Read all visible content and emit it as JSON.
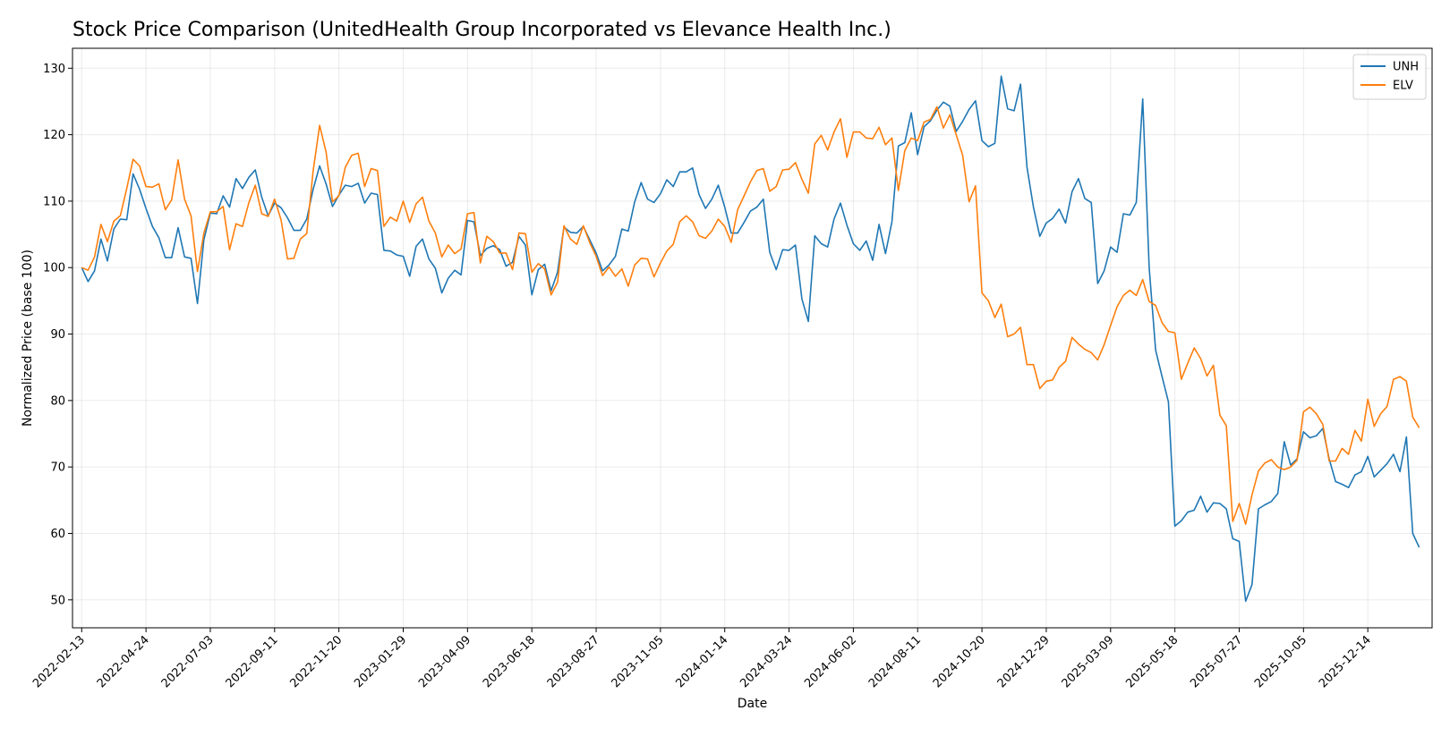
{
  "chart_data": {
    "type": "line",
    "title": "Stock Price Comparison (UnitedHealth Group Incorporated vs Elevance Health Inc.)",
    "xlabel": "Date",
    "ylabel": "Normalized Price (base 100)",
    "ylim": [
      45.8,
      133
    ],
    "yticks": [
      50,
      60,
      70,
      80,
      90,
      100,
      110,
      120,
      130
    ],
    "xlim_days": [
      -10,
      1470
    ],
    "xtick_labels": [
      "2022-02-13",
      "2022-04-24",
      "2022-07-03",
      "2022-09-11",
      "2022-11-20",
      "2023-01-29",
      "2023-04-09",
      "2023-06-18",
      "2023-08-27",
      "2023-11-05",
      "2024-01-14",
      "2024-03-24",
      "2024-06-02",
      "2024-08-11",
      "2024-10-20",
      "2024-12-29",
      "2025-03-09",
      "2025-05-18",
      "2025-07-27",
      "2025-10-05",
      "2025-12-14"
    ],
    "xtick_days": [
      0,
      70,
      140,
      210,
      280,
      350,
      420,
      490,
      560,
      630,
      700,
      770,
      840,
      910,
      980,
      1050,
      1120,
      1190,
      1260,
      1330,
      1400
    ],
    "grid": true,
    "legend_position": "top-right",
    "series": [
      {
        "name": "UNH",
        "color": "#1f77b4",
        "x": [
          0,
          7,
          14,
          21,
          28,
          35,
          42,
          49,
          56,
          63,
          70,
          77,
          84,
          91,
          98,
          105,
          112,
          119,
          126,
          133,
          140,
          147,
          154,
          161,
          168,
          175,
          182,
          189,
          196,
          203,
          210,
          217,
          224,
          231,
          238,
          245,
          252,
          259,
          266,
          273,
          280,
          287,
          294,
          301,
          308,
          315,
          322,
          329,
          336,
          343,
          350,
          357,
          364,
          371,
          378,
          385,
          392,
          399,
          406,
          413,
          420,
          427,
          434,
          441,
          448,
          455,
          462,
          469,
          476,
          483,
          490,
          497,
          504,
          511,
          518,
          525,
          532,
          539,
          546,
          553,
          560,
          567,
          574,
          581,
          588,
          595,
          602,
          609,
          616,
          623,
          630,
          637,
          644,
          651,
          658,
          665,
          672,
          679,
          686,
          693,
          700,
          707,
          714,
          721,
          728,
          735,
          742,
          749,
          756,
          763,
          770,
          777,
          784,
          791,
          798,
          805,
          812,
          819,
          826,
          833,
          840,
          847,
          854,
          861,
          868,
          875,
          882,
          889,
          896,
          903,
          910,
          917,
          924,
          931,
          938,
          945,
          952,
          959,
          966,
          973,
          980,
          987,
          994,
          1001,
          1008,
          1015,
          1022,
          1029,
          1036,
          1043,
          1050,
          1057,
          1064,
          1071,
          1078,
          1085,
          1092,
          1099,
          1106,
          1113,
          1120,
          1127,
          1134,
          1141,
          1148,
          1155,
          1162,
          1169,
          1176,
          1183,
          1190,
          1197,
          1204,
          1211,
          1218,
          1225,
          1232,
          1239,
          1246,
          1253,
          1260,
          1267,
          1274,
          1281,
          1288,
          1295,
          1302,
          1309,
          1316,
          1323,
          1330,
          1337,
          1344,
          1351,
          1358,
          1365,
          1372,
          1379,
          1386,
          1393,
          1400,
          1407,
          1414,
          1421,
          1428,
          1435,
          1442,
          1449,
          1456
        ],
        "values": [
          100.0,
          97.9,
          99.5,
          104.3,
          101.0,
          105.8,
          107.3,
          107.2,
          114.1,
          111.8,
          108.9,
          106.2,
          104.5,
          101.5,
          101.5,
          106.0,
          101.6,
          101.4,
          94.6,
          104.2,
          108.2,
          108.1,
          110.8,
          109.1,
          113.4,
          111.9,
          113.6,
          114.7,
          110.6,
          107.8,
          109.7,
          109.0,
          107.5,
          105.6,
          105.6,
          107.3,
          111.8,
          115.3,
          112.6,
          109.2,
          110.9,
          112.4,
          112.2,
          112.7,
          109.7,
          111.2,
          111.0,
          102.6,
          102.5,
          101.9,
          101.7,
          98.7,
          103.2,
          104.3,
          101.3,
          99.9,
          96.2,
          98.4,
          99.6,
          98.9,
          107.1,
          106.9,
          101.8,
          102.9,
          103.3,
          102.7,
          100.2,
          100.8,
          104.7,
          103.4,
          95.9,
          99.7,
          100.5,
          96.5,
          99.3,
          106.1,
          105.3,
          105.2,
          106.2,
          104.2,
          102.2,
          99.5,
          100.4,
          101.7,
          105.8,
          105.5,
          109.9,
          112.8,
          110.3,
          109.8,
          111.1,
          113.2,
          112.2,
          114.4,
          114.4,
          115.0,
          111.0,
          108.9,
          110.3,
          112.4,
          109.1,
          105.2,
          105.2,
          106.8,
          108.5,
          109.1,
          110.3,
          102.3,
          99.7,
          102.7,
          102.6,
          103.4,
          95.3,
          91.9,
          104.8,
          103.6,
          103.1,
          107.3,
          109.7,
          106.4,
          103.6,
          102.6,
          104.0,
          101.1,
          106.5,
          102.1,
          106.9,
          118.3,
          118.8,
          123.3,
          117.0,
          121.2,
          122.1,
          123.7,
          124.9,
          124.3,
          120.5,
          122.0,
          123.8,
          125.1,
          119.1,
          118.2,
          118.7,
          128.8,
          123.9,
          123.6,
          127.6,
          115.1,
          109.1,
          104.7,
          106.7,
          107.4,
          108.8,
          106.7,
          111.4,
          113.4,
          110.4,
          109.8,
          97.6,
          99.5,
          103.1,
          102.3,
          108.1,
          107.9,
          109.8,
          125.4,
          100.0,
          87.6,
          83.6,
          79.8,
          61.1,
          61.9,
          63.2,
          63.5,
          65.6,
          63.2,
          64.6,
          64.5,
          63.7,
          59.2,
          58.8,
          49.8,
          52.3,
          63.7,
          64.3,
          64.8,
          66.0,
          73.8,
          70.3,
          71.2,
          75.3,
          74.4,
          74.7,
          75.8,
          71.2,
          67.8,
          67.4,
          66.9,
          68.8,
          69.3,
          71.6,
          68.5,
          69.5,
          70.5,
          71.9,
          69.3,
          74.5,
          60.0,
          57.9
        ]
      },
      {
        "name": "ELV",
        "color": "#ff7f0e",
        "x": [
          0,
          7,
          14,
          21,
          28,
          35,
          42,
          49,
          56,
          63,
          70,
          77,
          84,
          91,
          98,
          105,
          112,
          119,
          126,
          133,
          140,
          147,
          154,
          161,
          168,
          175,
          182,
          189,
          196,
          203,
          210,
          217,
          224,
          231,
          238,
          245,
          252,
          259,
          266,
          273,
          280,
          287,
          294,
          301,
          308,
          315,
          322,
          329,
          336,
          343,
          350,
          357,
          364,
          371,
          378,
          385,
          392,
          399,
          406,
          413,
          420,
          427,
          434,
          441,
          448,
          455,
          462,
          469,
          476,
          483,
          490,
          497,
          504,
          511,
          518,
          525,
          532,
          539,
          546,
          553,
          560,
          567,
          574,
          581,
          588,
          595,
          602,
          609,
          616,
          623,
          630,
          637,
          644,
          651,
          658,
          665,
          672,
          679,
          686,
          693,
          700,
          707,
          714,
          721,
          728,
          735,
          742,
          749,
          756,
          763,
          770,
          777,
          784,
          791,
          798,
          805,
          812,
          819,
          826,
          833,
          840,
          847,
          854,
          861,
          868,
          875,
          882,
          889,
          896,
          903,
          910,
          917,
          924,
          931,
          938,
          945,
          952,
          959,
          966,
          973,
          980,
          987,
          994,
          1001,
          1008,
          1015,
          1022,
          1029,
          1036,
          1043,
          1050,
          1057,
          1064,
          1071,
          1078,
          1085,
          1092,
          1099,
          1106,
          1113,
          1120,
          1127,
          1134,
          1141,
          1148,
          1155,
          1162,
          1169,
          1176,
          1183,
          1190,
          1197,
          1204,
          1211,
          1218,
          1225,
          1232,
          1239,
          1246,
          1253,
          1260,
          1267,
          1274,
          1281,
          1288,
          1295,
          1302,
          1309,
          1316,
          1323,
          1330,
          1337,
          1344,
          1351,
          1358,
          1365,
          1372,
          1379,
          1386,
          1393,
          1400,
          1407,
          1414,
          1421,
          1428,
          1435,
          1442,
          1449,
          1456
        ],
        "values": [
          100.0,
          99.6,
          101.6,
          106.5,
          103.9,
          107.0,
          107.8,
          111.9,
          116.3,
          115.3,
          112.2,
          112.1,
          112.6,
          108.7,
          110.2,
          116.2,
          110.3,
          107.8,
          99.4,
          105.2,
          108.4,
          108.4,
          109.2,
          102.7,
          106.6,
          106.2,
          109.8,
          112.4,
          108.1,
          107.7,
          110.3,
          107.2,
          101.3,
          101.4,
          104.3,
          105.1,
          114.6,
          121.4,
          117.4,
          109.9,
          110.8,
          115.1,
          116.9,
          117.2,
          112.2,
          114.9,
          114.6,
          106.2,
          107.6,
          107.0,
          110.0,
          106.8,
          109.6,
          110.6,
          107.0,
          105.2,
          101.6,
          103.4,
          102.1,
          102.8,
          108.1,
          108.3,
          100.7,
          104.7,
          103.9,
          102.2,
          102.2,
          99.7,
          105.2,
          105.1,
          99.3,
          100.6,
          99.8,
          95.9,
          97.8,
          106.3,
          104.3,
          103.5,
          106.3,
          103.8,
          101.7,
          98.8,
          100.1,
          98.7,
          99.8,
          97.2,
          100.4,
          101.4,
          101.3,
          98.6,
          100.7,
          102.5,
          103.5,
          106.9,
          107.8,
          106.9,
          104.8,
          104.4,
          105.5,
          107.3,
          106.2,
          103.8,
          108.7,
          110.8,
          112.9,
          114.6,
          114.9,
          111.5,
          112.2,
          114.7,
          114.8,
          115.8,
          113.3,
          111.2,
          118.6,
          119.9,
          117.7,
          120.4,
          122.4,
          116.6,
          120.4,
          120.4,
          119.5,
          119.4,
          121.1,
          118.5,
          119.5,
          111.6,
          117.6,
          119.5,
          119.1,
          121.9,
          122.3,
          124.2,
          121.0,
          123.0,
          120.0,
          116.9,
          109.9,
          112.3,
          96.2,
          95.0,
          92.5,
          94.5,
          89.6,
          90.0,
          91.0,
          85.4,
          85.4,
          81.8,
          82.9,
          83.1,
          85.0,
          85.9,
          89.5,
          88.5,
          87.7,
          87.2,
          86.1,
          88.4,
          91.3,
          94.1,
          95.8,
          96.6,
          95.8,
          98.2,
          94.9,
          94.3,
          91.7,
          90.4,
          90.2,
          83.2,
          85.6,
          87.9,
          86.3,
          83.7,
          85.3,
          77.8,
          76.2,
          61.8,
          64.5,
          61.4,
          65.8,
          69.4,
          70.6,
          71.1,
          70.0,
          69.6,
          70.0,
          71.0,
          78.3,
          79.0,
          78.0,
          76.4,
          70.9,
          70.9,
          72.8,
          71.9,
          75.5,
          73.9,
          80.2,
          76.1,
          78.0,
          79.1,
          83.2,
          83.6,
          82.9,
          77.5,
          75.9
        ]
      }
    ]
  }
}
